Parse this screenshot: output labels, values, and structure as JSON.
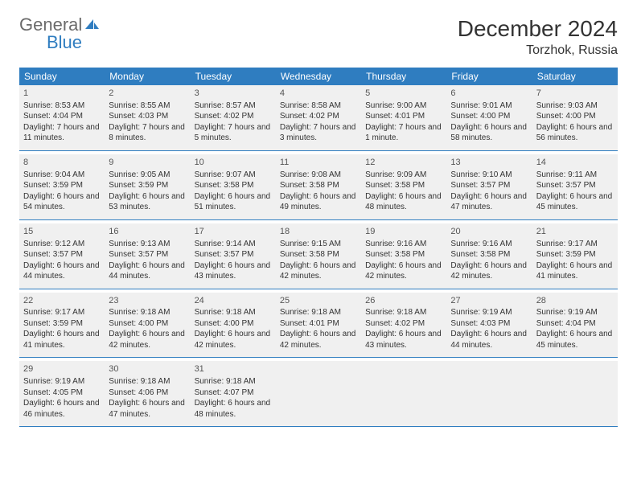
{
  "brand": {
    "general": "General",
    "blue": "Blue",
    "icon_color": "#2f7dc0"
  },
  "header": {
    "month": "December 2024",
    "location": "Torzhok, Russia"
  },
  "style": {
    "header_bg": "#2f7dc0",
    "header_text": "#ffffff",
    "cell_bg": "#f0f0f0",
    "row_border": "#2f7dc0",
    "body_font_size": 10,
    "day_font_size": 11,
    "th_font_size": 12,
    "month_font_size": 28,
    "location_font_size": 16
  },
  "dow": [
    "Sunday",
    "Monday",
    "Tuesday",
    "Wednesday",
    "Thursday",
    "Friday",
    "Saturday"
  ],
  "weeks": [
    [
      {
        "n": "1",
        "sr": "Sunrise: 8:53 AM",
        "ss": "Sunset: 4:04 PM",
        "dl": "Daylight: 7 hours and 11 minutes."
      },
      {
        "n": "2",
        "sr": "Sunrise: 8:55 AM",
        "ss": "Sunset: 4:03 PM",
        "dl": "Daylight: 7 hours and 8 minutes."
      },
      {
        "n": "3",
        "sr": "Sunrise: 8:57 AM",
        "ss": "Sunset: 4:02 PM",
        "dl": "Daylight: 7 hours and 5 minutes."
      },
      {
        "n": "4",
        "sr": "Sunrise: 8:58 AM",
        "ss": "Sunset: 4:02 PM",
        "dl": "Daylight: 7 hours and 3 minutes."
      },
      {
        "n": "5",
        "sr": "Sunrise: 9:00 AM",
        "ss": "Sunset: 4:01 PM",
        "dl": "Daylight: 7 hours and 1 minute."
      },
      {
        "n": "6",
        "sr": "Sunrise: 9:01 AM",
        "ss": "Sunset: 4:00 PM",
        "dl": "Daylight: 6 hours and 58 minutes."
      },
      {
        "n": "7",
        "sr": "Sunrise: 9:03 AM",
        "ss": "Sunset: 4:00 PM",
        "dl": "Daylight: 6 hours and 56 minutes."
      }
    ],
    [
      {
        "n": "8",
        "sr": "Sunrise: 9:04 AM",
        "ss": "Sunset: 3:59 PM",
        "dl": "Daylight: 6 hours and 54 minutes."
      },
      {
        "n": "9",
        "sr": "Sunrise: 9:05 AM",
        "ss": "Sunset: 3:59 PM",
        "dl": "Daylight: 6 hours and 53 minutes."
      },
      {
        "n": "10",
        "sr": "Sunrise: 9:07 AM",
        "ss": "Sunset: 3:58 PM",
        "dl": "Daylight: 6 hours and 51 minutes."
      },
      {
        "n": "11",
        "sr": "Sunrise: 9:08 AM",
        "ss": "Sunset: 3:58 PM",
        "dl": "Daylight: 6 hours and 49 minutes."
      },
      {
        "n": "12",
        "sr": "Sunrise: 9:09 AM",
        "ss": "Sunset: 3:58 PM",
        "dl": "Daylight: 6 hours and 48 minutes."
      },
      {
        "n": "13",
        "sr": "Sunrise: 9:10 AM",
        "ss": "Sunset: 3:57 PM",
        "dl": "Daylight: 6 hours and 47 minutes."
      },
      {
        "n": "14",
        "sr": "Sunrise: 9:11 AM",
        "ss": "Sunset: 3:57 PM",
        "dl": "Daylight: 6 hours and 45 minutes."
      }
    ],
    [
      {
        "n": "15",
        "sr": "Sunrise: 9:12 AM",
        "ss": "Sunset: 3:57 PM",
        "dl": "Daylight: 6 hours and 44 minutes."
      },
      {
        "n": "16",
        "sr": "Sunrise: 9:13 AM",
        "ss": "Sunset: 3:57 PM",
        "dl": "Daylight: 6 hours and 44 minutes."
      },
      {
        "n": "17",
        "sr": "Sunrise: 9:14 AM",
        "ss": "Sunset: 3:57 PM",
        "dl": "Daylight: 6 hours and 43 minutes."
      },
      {
        "n": "18",
        "sr": "Sunrise: 9:15 AM",
        "ss": "Sunset: 3:58 PM",
        "dl": "Daylight: 6 hours and 42 minutes."
      },
      {
        "n": "19",
        "sr": "Sunrise: 9:16 AM",
        "ss": "Sunset: 3:58 PM",
        "dl": "Daylight: 6 hours and 42 minutes."
      },
      {
        "n": "20",
        "sr": "Sunrise: 9:16 AM",
        "ss": "Sunset: 3:58 PM",
        "dl": "Daylight: 6 hours and 42 minutes."
      },
      {
        "n": "21",
        "sr": "Sunrise: 9:17 AM",
        "ss": "Sunset: 3:59 PM",
        "dl": "Daylight: 6 hours and 41 minutes."
      }
    ],
    [
      {
        "n": "22",
        "sr": "Sunrise: 9:17 AM",
        "ss": "Sunset: 3:59 PM",
        "dl": "Daylight: 6 hours and 41 minutes."
      },
      {
        "n": "23",
        "sr": "Sunrise: 9:18 AM",
        "ss": "Sunset: 4:00 PM",
        "dl": "Daylight: 6 hours and 42 minutes."
      },
      {
        "n": "24",
        "sr": "Sunrise: 9:18 AM",
        "ss": "Sunset: 4:00 PM",
        "dl": "Daylight: 6 hours and 42 minutes."
      },
      {
        "n": "25",
        "sr": "Sunrise: 9:18 AM",
        "ss": "Sunset: 4:01 PM",
        "dl": "Daylight: 6 hours and 42 minutes."
      },
      {
        "n": "26",
        "sr": "Sunrise: 9:18 AM",
        "ss": "Sunset: 4:02 PM",
        "dl": "Daylight: 6 hours and 43 minutes."
      },
      {
        "n": "27",
        "sr": "Sunrise: 9:19 AM",
        "ss": "Sunset: 4:03 PM",
        "dl": "Daylight: 6 hours and 44 minutes."
      },
      {
        "n": "28",
        "sr": "Sunrise: 9:19 AM",
        "ss": "Sunset: 4:04 PM",
        "dl": "Daylight: 6 hours and 45 minutes."
      }
    ],
    [
      {
        "n": "29",
        "sr": "Sunrise: 9:19 AM",
        "ss": "Sunset: 4:05 PM",
        "dl": "Daylight: 6 hours and 46 minutes."
      },
      {
        "n": "30",
        "sr": "Sunrise: 9:18 AM",
        "ss": "Sunset: 4:06 PM",
        "dl": "Daylight: 6 hours and 47 minutes."
      },
      {
        "n": "31",
        "sr": "Sunrise: 9:18 AM",
        "ss": "Sunset: 4:07 PM",
        "dl": "Daylight: 6 hours and 48 minutes."
      },
      null,
      null,
      null,
      null
    ]
  ]
}
